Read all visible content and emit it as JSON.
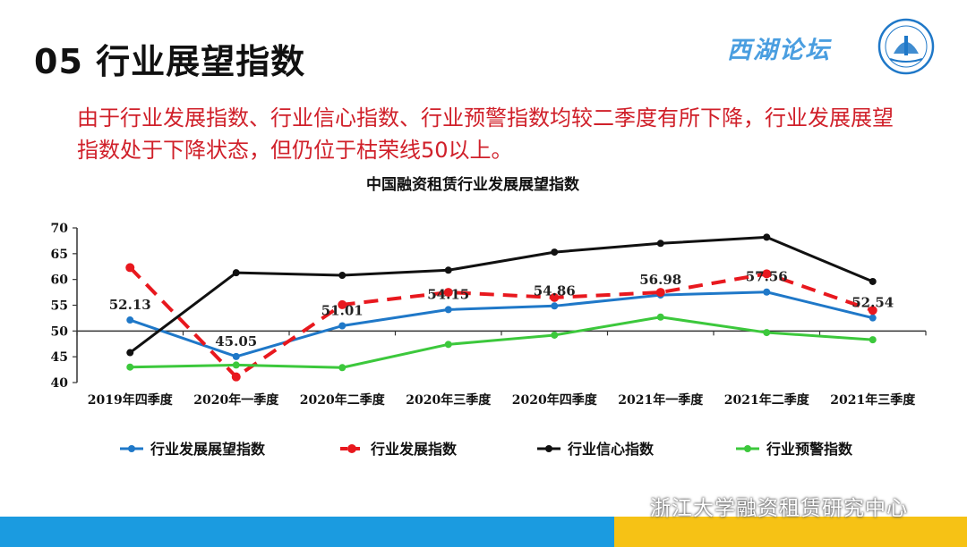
{
  "slide": {
    "title": "05 行业展望指数",
    "brand_text": "西湖论坛",
    "summary": "由于行业发展指数、行业信心指数、行业预警指数均较二季度有所下降，行业发展展望指数处于下降状态，但仍位于枯荣线50以上。",
    "watermark": "浙江大学融资租赁研究中心"
  },
  "colors": {
    "outlook": "#1f78c8",
    "development": "#e8181e",
    "confidence": "#111111",
    "warning": "#3cc83c",
    "footer_blue": "#1b9be0",
    "footer_yellow": "#f6c215"
  },
  "icons": [
    "seal-logo-icon",
    "wechat-icon"
  ],
  "chart_data": {
    "type": "line",
    "title": "中国融资租赁行业发展展望指数",
    "xlabel": "",
    "ylabel": "",
    "categories": [
      "2019年四季度",
      "2020年一季度",
      "2020年二季度",
      "2020年三季度",
      "2020年四季度",
      "2021年一季度",
      "2021年二季度",
      "2021年三季度"
    ],
    "ylim": [
      40,
      70
    ],
    "yticks": [
      40,
      45,
      50,
      55,
      60,
      65,
      70
    ],
    "grid": false,
    "baseline": 50,
    "legend_position": "bottom",
    "series": [
      {
        "name": "行业发展展望指数",
        "key": "outlook",
        "style": "solid",
        "values": [
          52.13,
          45.05,
          51.01,
          54.15,
          54.86,
          56.98,
          57.56,
          52.54
        ],
        "labels": [
          "52.13",
          "45.05",
          "51.01",
          "54.15",
          "54.86",
          "56.98",
          "57.56",
          "52.54"
        ]
      },
      {
        "name": "行业发展指数",
        "key": "development",
        "style": "dashed",
        "values": [
          62.3,
          41.1,
          55.1,
          57.5,
          56.5,
          57.5,
          61.1,
          54.0
        ]
      },
      {
        "name": "行业信心指数",
        "key": "confidence",
        "style": "solid",
        "values": [
          45.8,
          61.3,
          60.8,
          61.8,
          65.3,
          67.0,
          68.2,
          59.6
        ]
      },
      {
        "name": "行业预警指数",
        "key": "warning",
        "style": "solid",
        "values": [
          43.0,
          43.4,
          42.9,
          47.4,
          49.2,
          52.7,
          49.7,
          48.3
        ]
      }
    ]
  }
}
